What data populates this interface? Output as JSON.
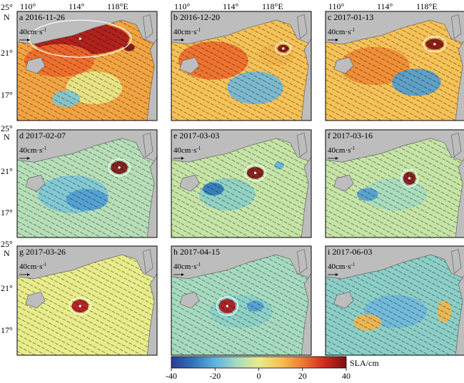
{
  "top_lon_labels": [
    "110°",
    "114°",
    "118°E"
  ],
  "lat_labels": {
    "top": "25°",
    "n": "N",
    "mid": "21°",
    "low": "17°"
  },
  "scale_label": "40cm·s",
  "scale_sup": "-1",
  "panels": [
    {
      "id": "a",
      "label": "a 2016-11-26"
    },
    {
      "id": "b",
      "label": "b 2016-12-20"
    },
    {
      "id": "c",
      "label": "c 2017-01-13"
    },
    {
      "id": "d",
      "label": "d 2017-02-07"
    },
    {
      "id": "e",
      "label": "e 2017-03-03"
    },
    {
      "id": "f",
      "label": "f 2017-03-16"
    },
    {
      "id": "g",
      "label": "g 2017-03-26"
    },
    {
      "id": "h",
      "label": "h 2017-04-15"
    },
    {
      "id": "i",
      "label": "i 2017-06-03"
    }
  ],
  "colorbar": {
    "title": "SLA/cm",
    "ticks": [
      "-40",
      "-20",
      "0",
      "20",
      "40"
    ],
    "colors": [
      "#2b3c96",
      "#2f74b9",
      "#5fb2df",
      "#a6dbc0",
      "#e8ec8a",
      "#f8c052",
      "#ee7a33",
      "#cf2a1f",
      "#7d0f12"
    ]
  }
}
